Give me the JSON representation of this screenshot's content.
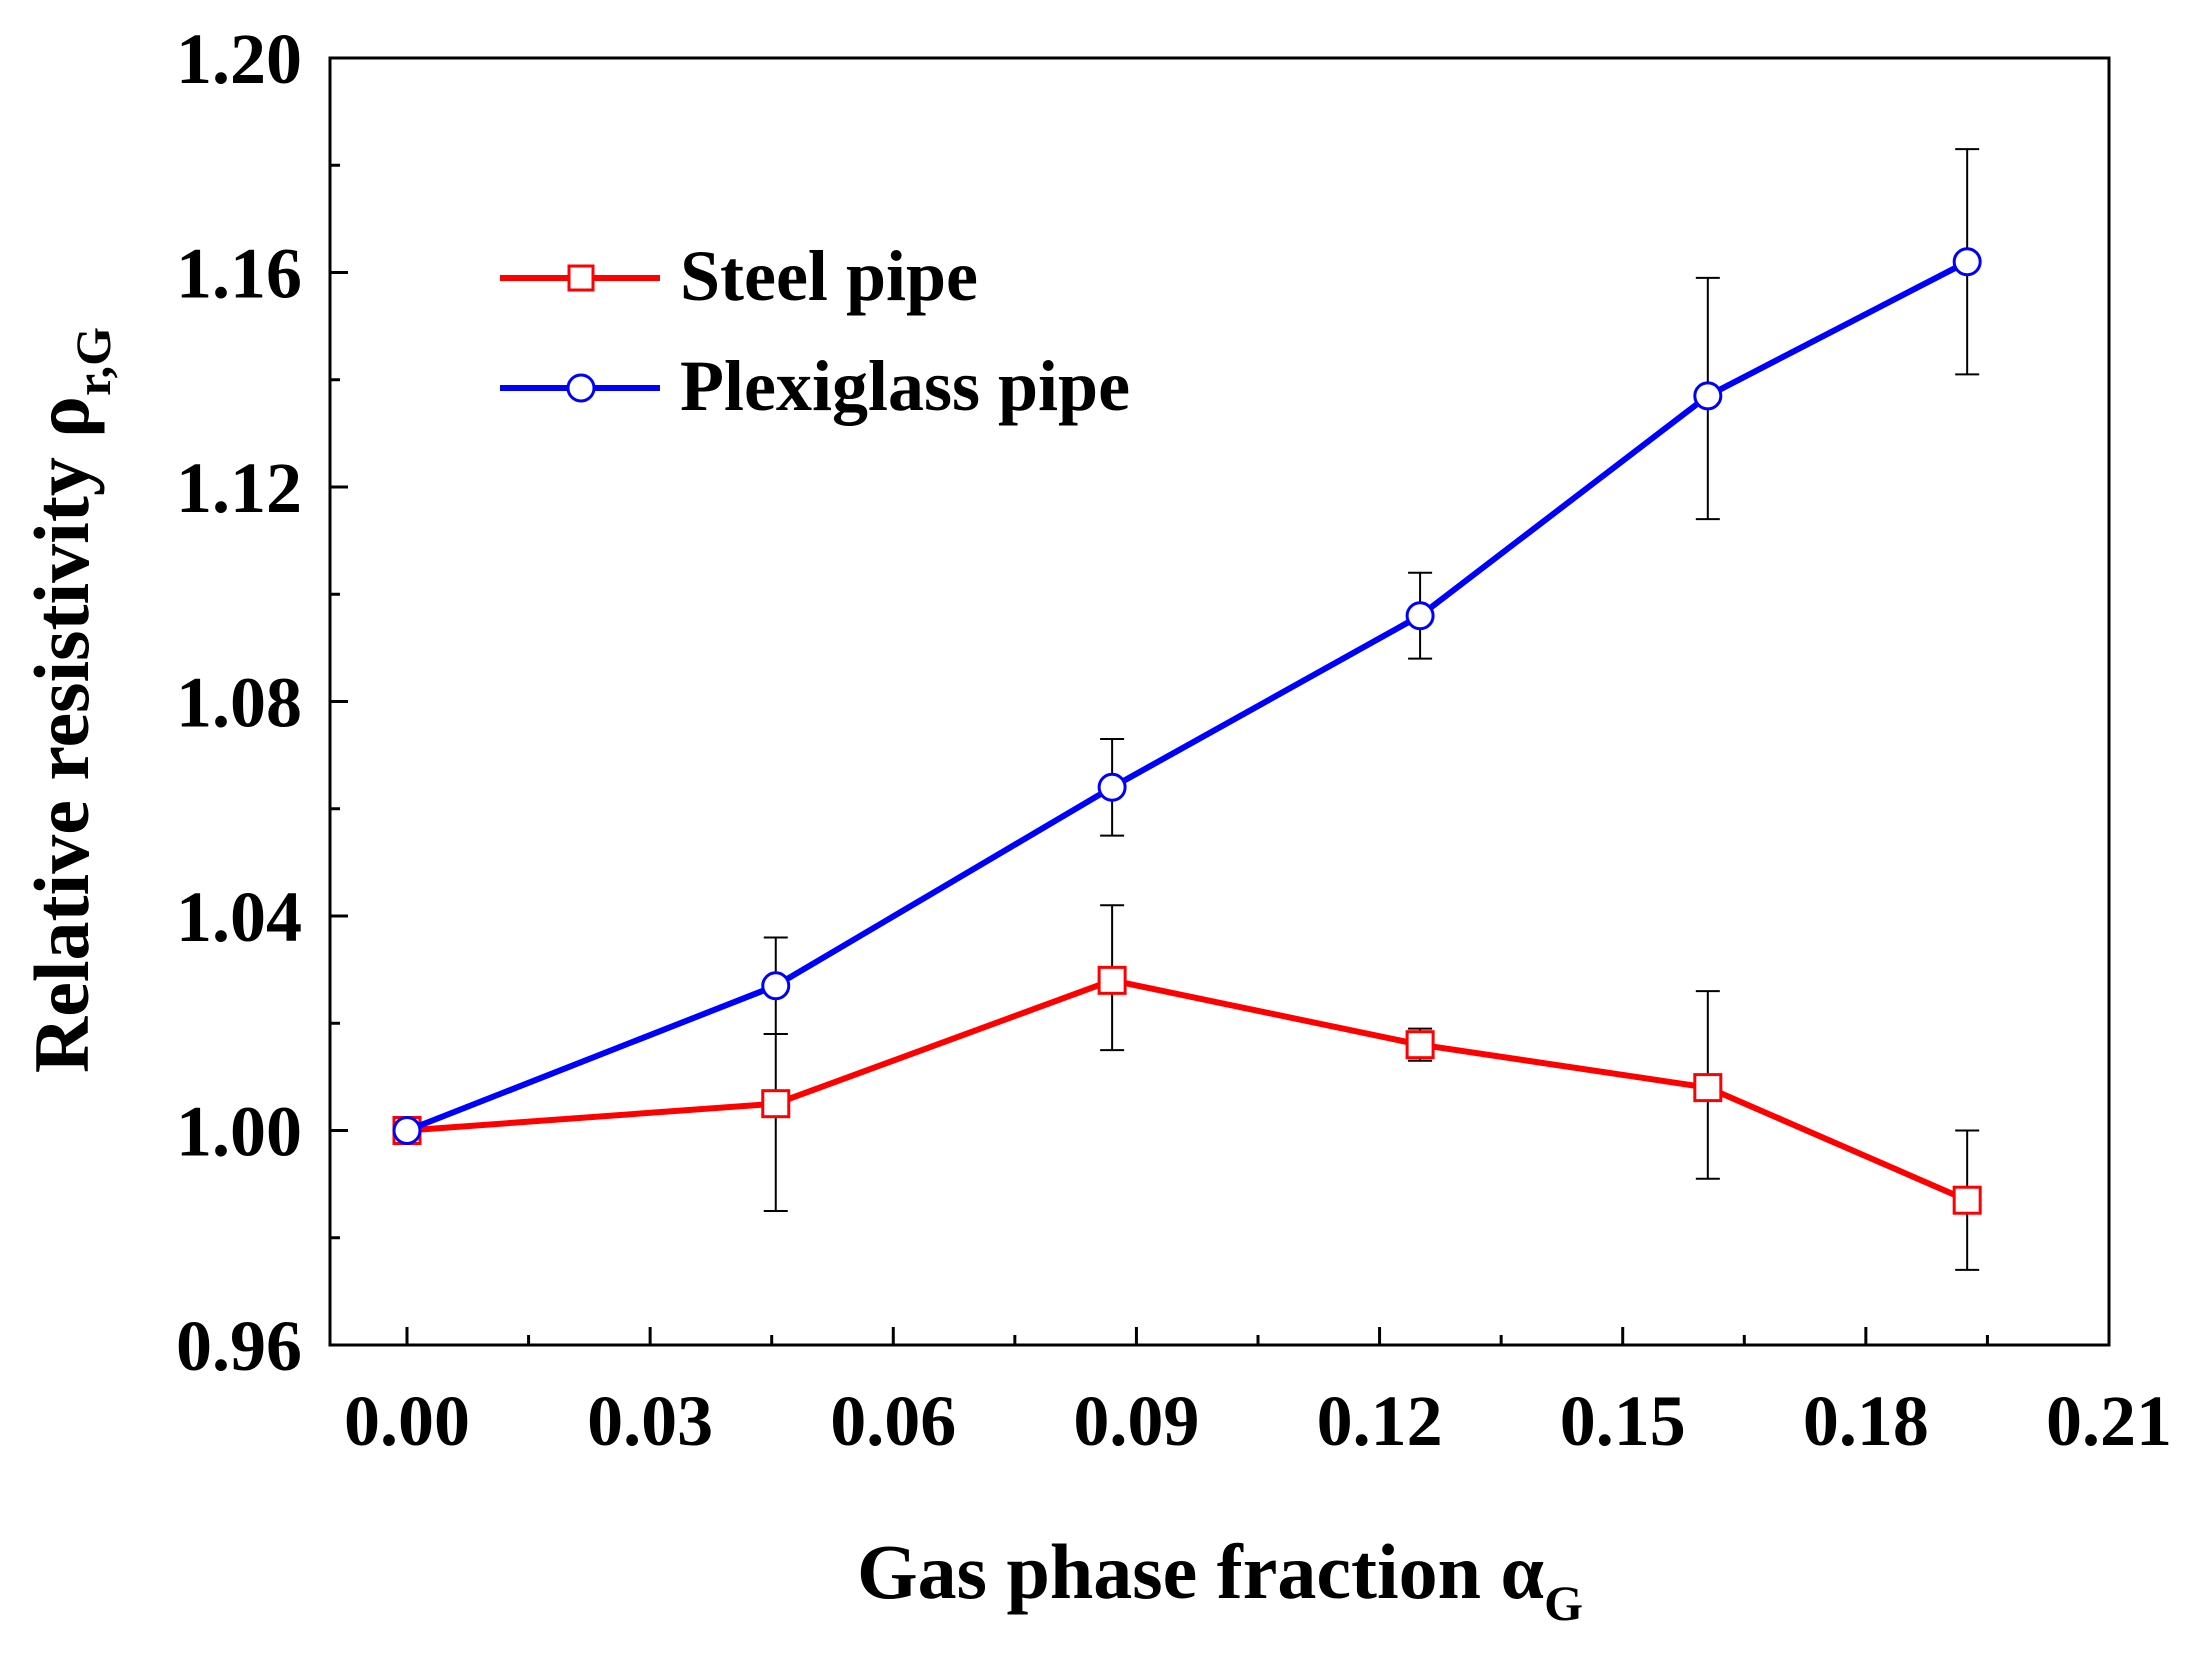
{
  "chart_data": {
    "type": "line",
    "xlabel": "Gas phase fraction ",
    "xlabel_symbol": "α",
    "xlabel_subscript": "G",
    "ylabel": "Relative resistivity ",
    "ylabel_symbol": "ρ",
    "ylabel_subscript": "r,G",
    "xlim": [
      -0.0095,
      0.21
    ],
    "ylim": [
      0.96,
      1.2
    ],
    "x_ticks": [
      0.0,
      0.03,
      0.06,
      0.09,
      0.12,
      0.15,
      0.18,
      0.21
    ],
    "x_tick_labels": [
      "0.00",
      "0.03",
      "0.06",
      "0.09",
      "0.12",
      "0.15",
      "0.18",
      "0.21"
    ],
    "y_ticks": [
      0.96,
      1.0,
      1.04,
      1.08,
      1.12,
      1.16,
      1.2
    ],
    "y_tick_labels": [
      "0.96",
      "1.00",
      "1.04",
      "1.08",
      "1.12",
      "1.16",
      "1.20"
    ],
    "legend_position": "upper-left",
    "grid": false,
    "series": [
      {
        "name": "Steel pipe",
        "color": "#ff0000",
        "marker": "square",
        "x": [
          0.0,
          0.0455,
          0.087,
          0.125,
          0.1605,
          0.1925
        ],
        "y": [
          1.0,
          1.005,
          1.028,
          1.016,
          1.008,
          0.987
        ],
        "err_low": [
          0.0,
          0.02,
          0.013,
          0.003,
          0.017,
          0.013
        ],
        "err_high": [
          0.0,
          0.013,
          0.014,
          0.003,
          0.018,
          0.013
        ]
      },
      {
        "name": "Plexiglass pipe",
        "color": "#0000ff",
        "marker": "circle",
        "x": [
          0.0,
          0.0455,
          0.087,
          0.125,
          0.1605,
          0.1925
        ],
        "y": [
          1.0,
          1.027,
          1.064,
          1.096,
          1.137,
          1.162
        ],
        "err_low": [
          0.0,
          0.009,
          0.009,
          0.008,
          0.023,
          0.021
        ],
        "err_high": [
          0.0,
          0.009,
          0.009,
          0.008,
          0.022,
          0.021
        ]
      }
    ]
  }
}
